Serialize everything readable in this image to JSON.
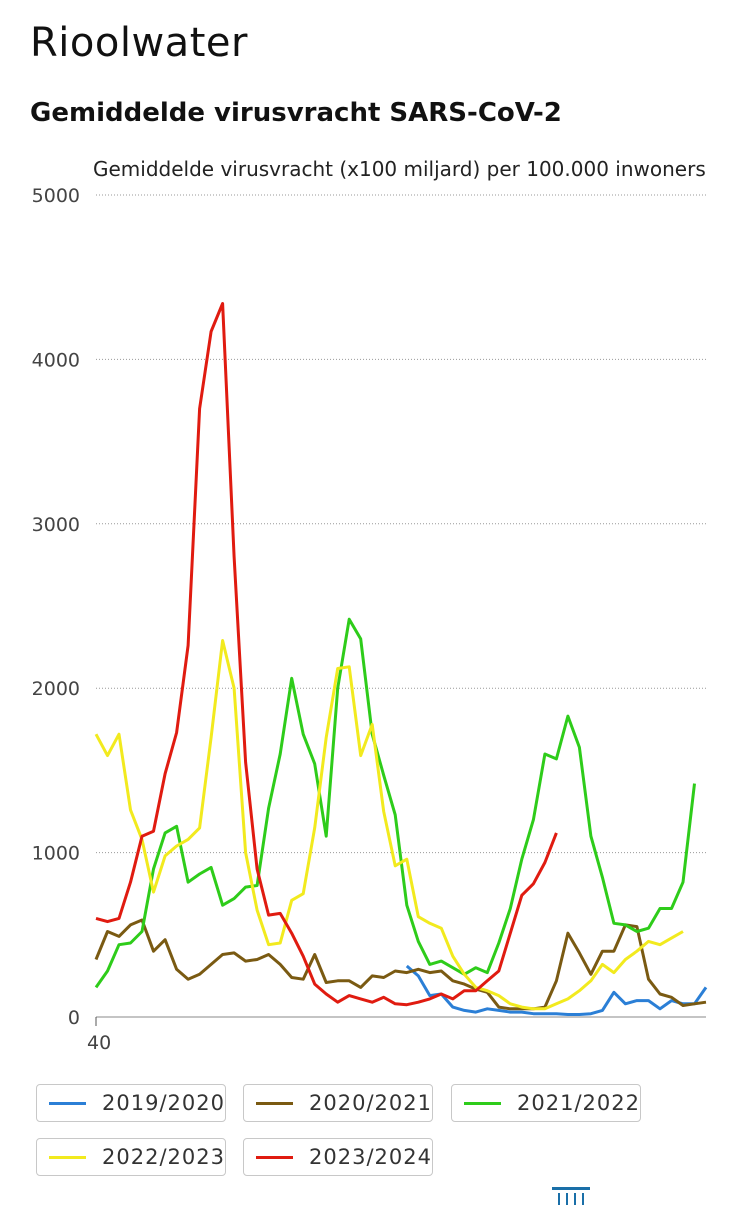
{
  "header": {
    "title": "Rioolwater"
  },
  "chart_data": {
    "type": "line",
    "title": "Gemiddelde virusvracht SARS-CoV-2",
    "ylabel": "Gemiddelde virusvracht (x100 miljard) per 100.000 inwoners",
    "xlabel": "",
    "ylim": [
      0,
      5000
    ],
    "yticks": [
      "0",
      "1000",
      "2000",
      "3000",
      "4000",
      "5000"
    ],
    "xtick_label": "40",
    "grid": "horizontal dotted",
    "legend_position": "bottom",
    "series": [
      {
        "name": "2019/2020",
        "color": "#2b7fd6",
        "values": [
          null,
          null,
          null,
          null,
          null,
          null,
          null,
          null,
          null,
          null,
          null,
          null,
          null,
          null,
          null,
          null,
          null,
          null,
          null,
          null,
          null,
          null,
          null,
          null,
          null,
          null,
          null,
          310,
          250,
          130,
          140,
          60,
          40,
          30,
          50,
          40,
          30,
          30,
          20,
          20,
          20,
          15,
          15,
          20,
          40,
          150,
          80,
          100,
          100,
          50,
          100,
          80,
          80,
          180
        ]
      },
      {
        "name": "2020/2021",
        "color": "#7a5a12",
        "values": [
          350,
          520,
          490,
          560,
          590,
          400,
          470,
          290,
          230,
          260,
          320,
          380,
          390,
          340,
          350,
          380,
          320,
          240,
          230,
          380,
          210,
          220,
          220,
          180,
          250,
          240,
          280,
          270,
          290,
          270,
          280,
          220,
          200,
          170,
          150,
          60,
          50,
          50,
          50,
          60,
          220,
          510,
          390,
          260,
          400,
          400,
          560,
          550,
          230,
          140,
          120,
          70,
          80,
          90
        ]
      },
      {
        "name": "2021/2022",
        "color": "#2ecc1a",
        "values": [
          180,
          280,
          440,
          450,
          520,
          900,
          1120,
          1160,
          820,
          870,
          910,
          680,
          720,
          790,
          800,
          1270,
          1600,
          2060,
          1720,
          1540,
          1100,
          2000,
          2420,
          2300,
          1720,
          1470,
          1230,
          680,
          460,
          320,
          340,
          300,
          260,
          300,
          270,
          450,
          660,
          960,
          1200,
          1600,
          1570,
          1830,
          1640,
          1100,
          850,
          570,
          560,
          520,
          540,
          660,
          660,
          820,
          1420
        ]
      },
      {
        "name": "2022/2023",
        "color": "#f2ea1e",
        "values": [
          1720,
          1590,
          1720,
          1260,
          1080,
          760,
          980,
          1040,
          1080,
          1150,
          1700,
          2290,
          2000,
          1000,
          650,
          440,
          450,
          710,
          750,
          1150,
          1700,
          2120,
          2130,
          1590,
          1780,
          1250,
          920,
          960,
          610,
          570,
          540,
          370,
          260,
          180,
          160,
          130,
          80,
          60,
          50,
          50,
          80,
          110,
          160,
          220,
          320,
          270,
          350,
          400,
          460,
          440,
          480,
          520
        ]
      },
      {
        "name": "2023/2024",
        "color": "#e01b10",
        "values": [
          600,
          580,
          600,
          820,
          1100,
          1130,
          1480,
          1730,
          2260,
          3700,
          4170,
          4340,
          2800,
          1550,
          900,
          620,
          630,
          510,
          370,
          200,
          140,
          90,
          130,
          110,
          90,
          120,
          80,
          75,
          90,
          110,
          140,
          110,
          160,
          160,
          220,
          280,
          510,
          740,
          810,
          940,
          1120
        ]
      }
    ]
  }
}
